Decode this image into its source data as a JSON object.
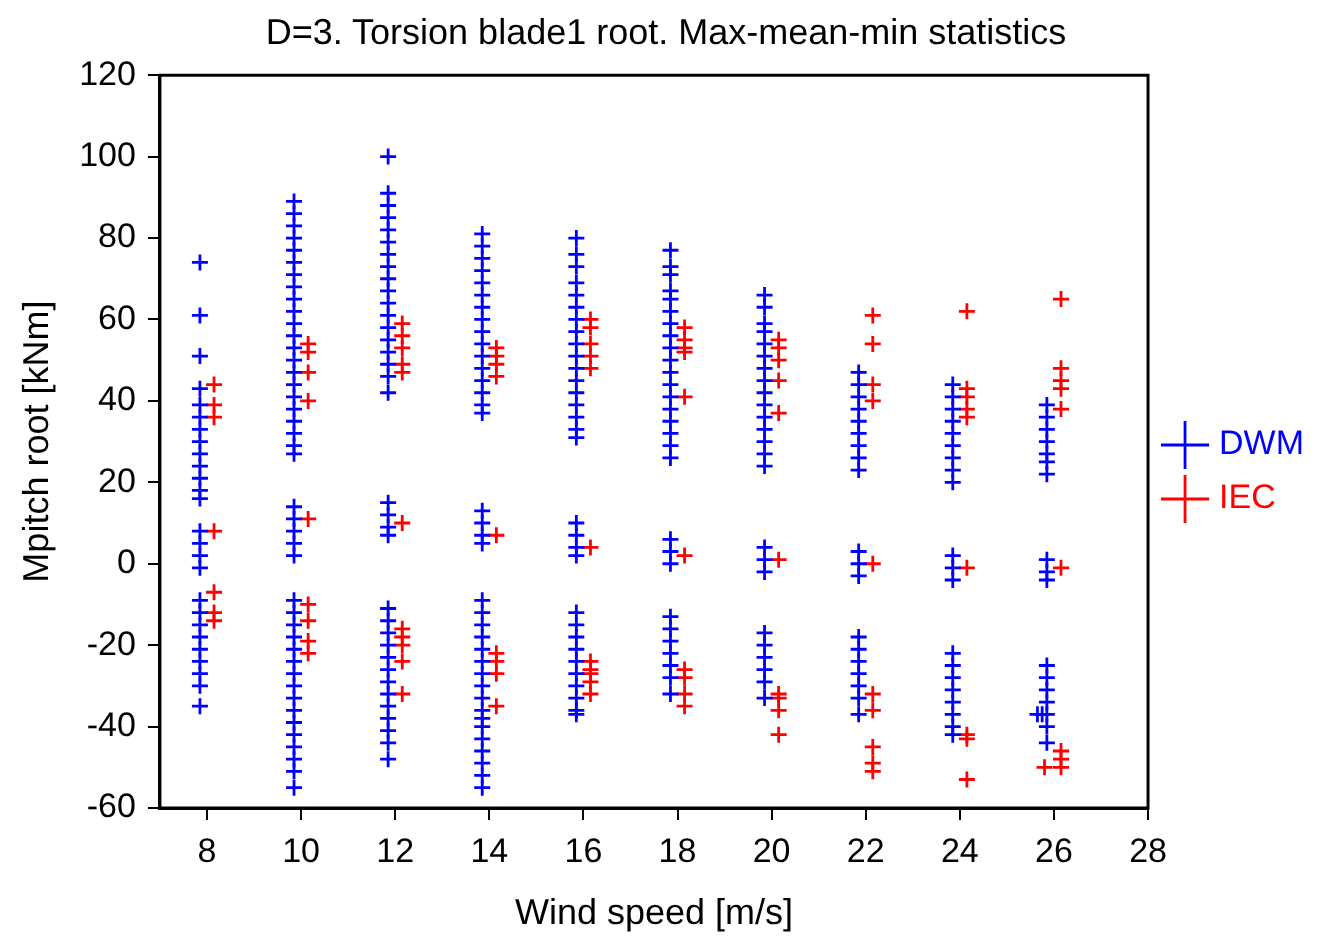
{
  "chart_data": {
    "type": "scatter",
    "title": "D=3. Torsion blade1 root. Max-mean-min statistics",
    "xlabel": "Wind speed [m/s]",
    "ylabel": "Mpitch root [kNm]",
    "xlim": [
      7,
      28
    ],
    "xticks": [
      8,
      10,
      12,
      14,
      16,
      18,
      20,
      22,
      24,
      26,
      28
    ],
    "ylim": [
      -60,
      120
    ],
    "yticks": [
      -60,
      -40,
      -20,
      0,
      20,
      40,
      60,
      80,
      100,
      120
    ],
    "grid": false,
    "legend": "right",
    "series": [
      {
        "name": "DWM",
        "color": "#0000ff",
        "marker": "cross",
        "x": [
          7.85,
          7.85,
          7.85,
          7.85,
          7.85,
          7.85,
          7.85,
          7.85,
          7.85,
          7.85,
          7.85,
          7.85,
          7.85,
          7.85,
          7.85,
          7.85,
          7.85,
          7.85,
          7.85,
          7.85,
          7.85,
          7.85,
          7.85,
          7.85,
          7.85,
          7.85,
          9.85,
          9.85,
          9.85,
          9.85,
          9.85,
          9.85,
          9.85,
          9.85,
          9.85,
          9.85,
          9.85,
          9.85,
          9.85,
          9.85,
          9.85,
          9.85,
          9.85,
          9.85,
          9.85,
          9.85,
          9.85,
          9.85,
          9.85,
          9.85,
          9.85,
          9.85,
          9.85,
          9.85,
          9.85,
          9.85,
          9.85,
          9.85,
          9.85,
          9.85,
          9.85,
          9.85,
          9.85,
          9.85,
          9.85,
          9.85,
          9.85,
          9.85,
          9.85,
          11.85,
          11.85,
          11.85,
          11.85,
          11.85,
          11.85,
          11.85,
          11.85,
          11.85,
          11.85,
          11.85,
          11.85,
          11.85,
          11.85,
          11.85,
          11.85,
          11.85,
          11.85,
          11.85,
          11.85,
          11.85,
          11.85,
          11.85,
          11.85,
          11.85,
          11.85,
          11.85,
          11.85,
          11.85,
          11.85,
          11.85,
          11.85,
          11.85,
          11.85,
          11.85,
          13.85,
          13.85,
          13.85,
          13.85,
          13.85,
          13.85,
          13.85,
          13.85,
          13.85,
          13.85,
          13.85,
          13.85,
          13.85,
          13.85,
          13.85,
          13.85,
          13.85,
          13.85,
          13.85,
          13.85,
          13.85,
          13.85,
          13.85,
          13.85,
          13.85,
          13.85,
          13.85,
          13.85,
          13.85,
          13.85,
          13.85,
          13.85,
          13.85,
          13.85,
          13.85,
          13.85,
          13.85,
          15.85,
          15.85,
          15.85,
          15.85,
          15.85,
          15.85,
          15.85,
          15.85,
          15.85,
          15.85,
          15.85,
          15.85,
          15.85,
          15.85,
          15.85,
          15.85,
          15.85,
          15.85,
          15.85,
          15.85,
          15.85,
          15.85,
          15.85,
          15.85,
          15.85,
          15.85,
          15.85,
          15.85,
          15.85,
          15.85,
          15.85,
          17.85,
          17.85,
          17.85,
          17.85,
          17.85,
          17.85,
          17.85,
          17.85,
          17.85,
          17.85,
          17.85,
          17.85,
          17.85,
          17.85,
          17.85,
          17.85,
          17.85,
          17.85,
          17.85,
          17.85,
          17.85,
          17.85,
          17.85,
          17.85,
          17.85,
          17.85,
          17.85,
          17.85,
          19.85,
          19.85,
          19.85,
          19.85,
          19.85,
          19.85,
          19.85,
          19.85,
          19.85,
          19.85,
          19.85,
          19.85,
          19.85,
          19.85,
          19.85,
          19.85,
          19.85,
          19.85,
          19.85,
          19.85,
          19.85,
          19.85,
          19.85,
          19.85,
          21.85,
          21.85,
          21.85,
          21.85,
          21.85,
          21.85,
          21.85,
          21.85,
          21.85,
          21.85,
          21.85,
          21.85,
          21.85,
          21.85,
          21.85,
          21.85,
          21.85,
          21.85,
          21.85,
          23.85,
          23.85,
          23.85,
          23.85,
          23.85,
          23.85,
          23.85,
          23.85,
          23.85,
          23.85,
          23.85,
          23.85,
          23.85,
          23.85,
          23.85,
          23.85,
          23.85,
          23.85,
          23.85,
          23.85,
          25.85,
          25.85,
          25.85,
          25.85,
          25.85,
          25.85,
          25.85,
          25.85,
          25.85,
          25.85,
          25.85,
          25.85,
          25.85,
          25.85,
          25.85,
          25.85,
          25.85,
          25.65,
          25.75
        ],
        "values": [
          74,
          61,
          51,
          43,
          39,
          36,
          33,
          30,
          27,
          24,
          21,
          18,
          16,
          8,
          5,
          2,
          -1,
          -9,
          -12,
          -15,
          -18,
          -21,
          -24,
          -27,
          -30,
          -35,
          89,
          86,
          83,
          80,
          77,
          74,
          71,
          68,
          65,
          62,
          59,
          56,
          53,
          50,
          47,
          44,
          41,
          38,
          35,
          32,
          29,
          27,
          14,
          11,
          8,
          5,
          2,
          -9,
          -12,
          -15,
          -18,
          -21,
          -24,
          -27,
          -30,
          -33,
          -36,
          -39,
          -42,
          -45,
          -48,
          -51,
          -55,
          100,
          91,
          88,
          85,
          82,
          79,
          76,
          73,
          70,
          67,
          64,
          61,
          58,
          55,
          52,
          49,
          46,
          42,
          15,
          12,
          9,
          7,
          -11,
          -14,
          -17,
          -20,
          -23,
          -26,
          -29,
          -32,
          -35,
          -38,
          -41,
          -44,
          -48,
          81,
          78,
          75,
          72,
          69,
          66,
          63,
          60,
          57,
          54,
          51,
          48,
          45,
          42,
          39,
          37,
          13,
          10,
          7,
          5,
          -9,
          -12,
          -15,
          -18,
          -21,
          -24,
          -27,
          -30,
          -33,
          -36,
          -38,
          -40,
          -43,
          -46,
          -49,
          -52,
          -55,
          80,
          76,
          73,
          69,
          66,
          63,
          60,
          57,
          54,
          51,
          48,
          45,
          42,
          39,
          36,
          33,
          31,
          10,
          7,
          4,
          2,
          -12,
          -15,
          -18,
          -21,
          -24,
          -27,
          -30,
          -33,
          -36,
          -37,
          77,
          73,
          71,
          67,
          65,
          62,
          59,
          56,
          53,
          50,
          47,
          44,
          41,
          38,
          35,
          32,
          29,
          26,
          6,
          3,
          0,
          -13,
          -16,
          -19,
          -22,
          -25,
          -28,
          -32,
          66,
          63,
          59,
          57,
          54,
          51,
          48,
          45,
          42,
          39,
          36,
          33,
          30,
          27,
          24,
          4,
          1,
          -2,
          -17,
          -20,
          -23,
          -26,
          -29,
          -33,
          47,
          44,
          41,
          38,
          35,
          32,
          29,
          26,
          23,
          3,
          0,
          -3,
          -18,
          -21,
          -24,
          -27,
          -30,
          -33,
          -37,
          44,
          41,
          38,
          35,
          32,
          29,
          26,
          23,
          20,
          2,
          -1,
          -4,
          -22,
          -25,
          -28,
          -31,
          -34,
          -37,
          -40,
          -42,
          39,
          36,
          33,
          30,
          27,
          25,
          22,
          1,
          -2,
          -4,
          -25,
          -28,
          -31,
          -34,
          -37,
          -40,
          -44,
          -37,
          -37
        ]
      },
      {
        "name": "IEC",
        "color": "#ff0000",
        "marker": "cross",
        "x": [
          8.15,
          8.15,
          8.15,
          8.15,
          8.15,
          8.15,
          8.15,
          10.15,
          10.15,
          10.15,
          10.15,
          10.15,
          10.15,
          10.15,
          10.15,
          10.15,
          12.15,
          12.15,
          12.15,
          12.15,
          12.15,
          12.15,
          12.15,
          12.15,
          12.15,
          12.15,
          12.15,
          14.15,
          14.15,
          14.15,
          14.15,
          14.15,
          14.15,
          14.15,
          14.15,
          14.15,
          16.15,
          16.15,
          16.15,
          16.15,
          16.15,
          16.15,
          16.15,
          16.15,
          16.15,
          16.15,
          16.15,
          18.15,
          18.15,
          18.15,
          18.15,
          18.15,
          18.15,
          18.15,
          18.15,
          18.15,
          18.15,
          20.15,
          20.15,
          20.15,
          20.15,
          20.15,
          20.15,
          20.15,
          20.15,
          20.15,
          20.15,
          22.15,
          22.15,
          22.15,
          22.15,
          22.15,
          22.15,
          22.15,
          22.15,
          22.15,
          22.15,
          24.15,
          24.15,
          24.15,
          24.15,
          24.15,
          24.15,
          24.15,
          24.15,
          24.15,
          26.15,
          26.15,
          26.15,
          26.15,
          26.15,
          26.15,
          26.15,
          26.15,
          26.15,
          25.8
        ],
        "values": [
          44,
          39,
          36,
          8,
          -7,
          -12,
          -14,
          54,
          52,
          47,
          40,
          11,
          -10,
          -14,
          -19,
          -22,
          59,
          56,
          53,
          49,
          47,
          10,
          -16,
          -18,
          -20,
          -24,
          -32,
          53,
          51,
          49,
          46,
          7,
          -22,
          -24,
          -27,
          -35,
          60,
          58,
          54,
          51,
          48,
          4,
          -24,
          -26,
          -27,
          -29,
          -32,
          58,
          55,
          53,
          52,
          41,
          2,
          -26,
          -28,
          -32,
          -35,
          55,
          53,
          50,
          45,
          37,
          1,
          -32,
          -33,
          -36,
          -42,
          61,
          54,
          44,
          40,
          0,
          -32,
          -36,
          -45,
          -49,
          -51,
          62,
          43,
          41,
          38,
          36,
          -1,
          -42,
          -43,
          -53,
          65,
          48,
          45,
          43,
          38,
          -1,
          -46,
          -48,
          -50,
          -50
        ]
      }
    ]
  }
}
